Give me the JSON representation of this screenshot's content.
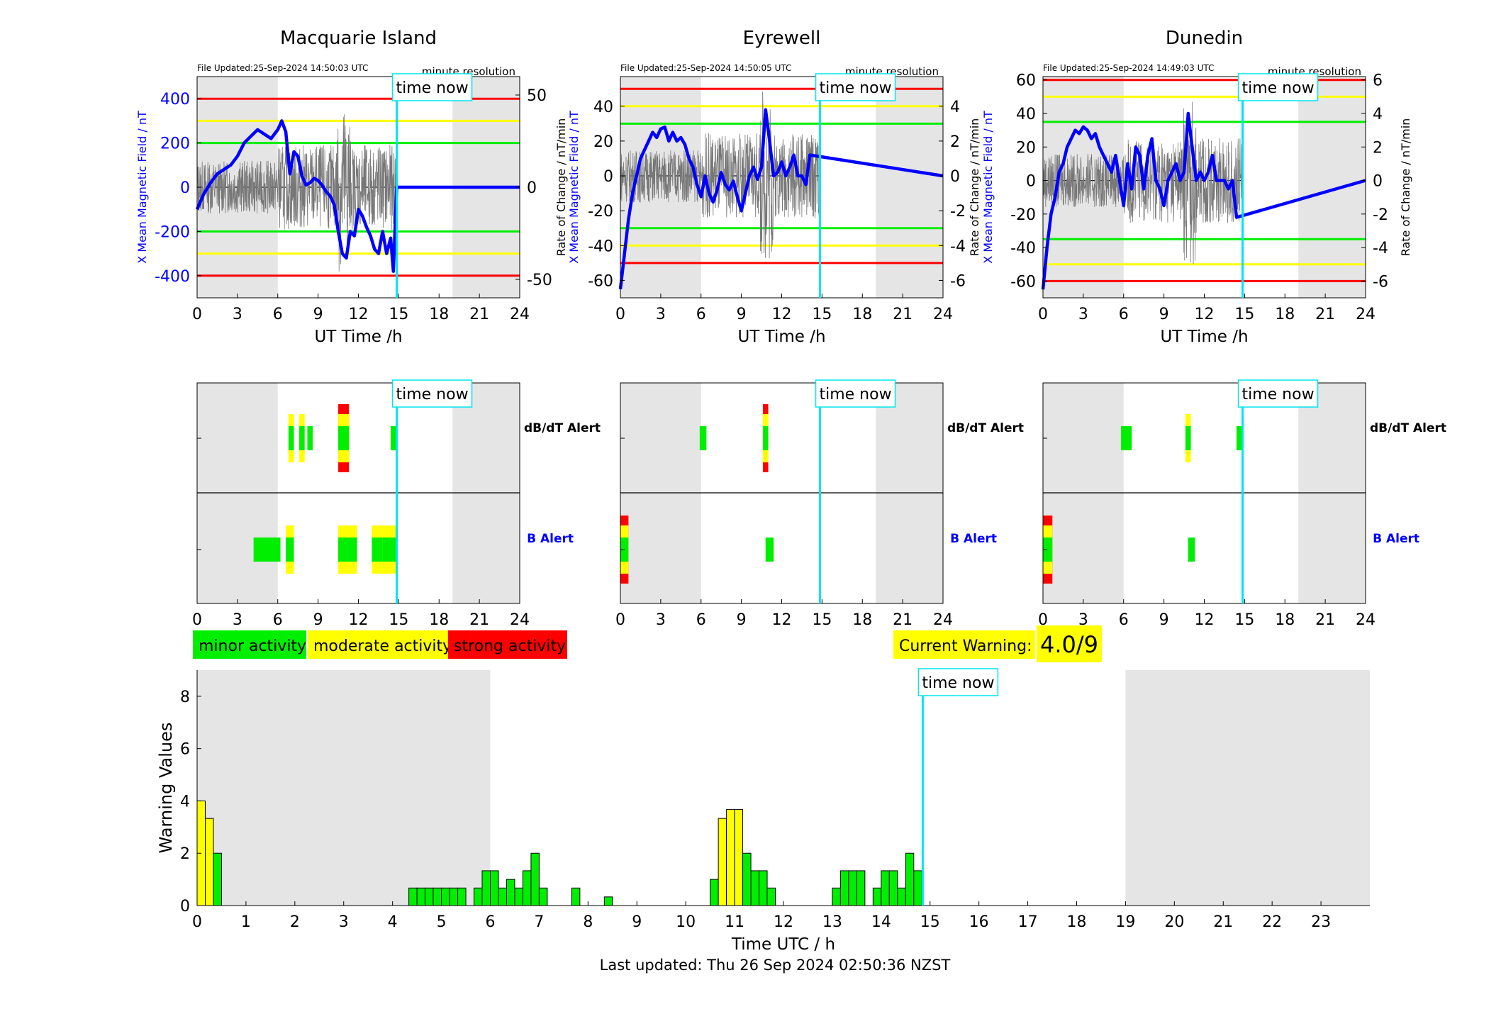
{
  "labels": {
    "time_now": "time now",
    "minute_resolution": "minute resolution",
    "x_axis_label": "UT Time /h",
    "y_left_label": "X Mean Magnetic Field / nT",
    "y_right_label": "Rate of Change / nT/min",
    "dbdt_alert": "dB/dT Alert",
    "b_alert": "B Alert",
    "warning_y_label": "Warning Values",
    "warning_x_label": "Time UTC / h",
    "last_updated": "Last updated: Thu 26 Sep 2024 02:50:36 NZST",
    "current_warning_label": "Current Warning:",
    "current_warning_value": "4.0/9"
  },
  "legend": [
    {
      "label": "minor activity",
      "color": "#00ee00"
    },
    {
      "label": "moderate activity",
      "color": "#ffff00"
    },
    {
      "label": "strong activity",
      "color": "#ff0000"
    }
  ],
  "colors": {
    "minor": "#00ee00",
    "moderate": "#ffff00",
    "strong": "#ff0000",
    "field": "#0000ff",
    "now_line": "#00e5ee",
    "night_shade": "#e5e5e5"
  },
  "time_now_hour": 14.85,
  "chart_data": [
    {
      "type": "line",
      "title": "Macquarie Island",
      "file_updated": "File Updated:25-Sep-2024 14:50:03 UTC",
      "x_ticks": [
        0,
        3,
        6,
        9,
        12,
        15,
        18,
        21,
        24
      ],
      "xlim": [
        0,
        24
      ],
      "ylim_left": [
        -500,
        500
      ],
      "y_ticks_left": [
        400,
        200,
        0,
        -200,
        -400
      ],
      "ylim_right": [
        -60,
        60
      ],
      "y_ticks_right": [
        50,
        0,
        -50
      ],
      "thresholds": {
        "strong": [
          400,
          -400
        ],
        "moderate": [
          300,
          -300
        ],
        "minor": [
          200,
          -200
        ]
      },
      "night_shade": [
        [
          0,
          6
        ],
        [
          19,
          24
        ]
      ],
      "field_series": {
        "x": [
          0,
          0.5,
          1,
          1.5,
          2,
          2.5,
          3,
          3.5,
          4,
          4.5,
          5,
          5.5,
          6,
          6.3,
          6.6,
          6.9,
          7.2,
          7.5,
          7.8,
          8.1,
          8.4,
          8.7,
          9,
          9.3,
          9.6,
          9.9,
          10.2,
          10.5,
          10.8,
          11.1,
          11.4,
          11.7,
          12,
          12.3,
          12.6,
          12.9,
          13.2,
          13.5,
          13.8,
          14.1,
          14.4,
          14.6,
          14.85,
          24
        ],
        "y": [
          -100,
          -30,
          20,
          60,
          80,
          100,
          140,
          200,
          230,
          260,
          240,
          220,
          260,
          300,
          250,
          60,
          160,
          140,
          50,
          10,
          20,
          40,
          30,
          10,
          -20,
          -40,
          -80,
          -200,
          -300,
          -320,
          -200,
          -220,
          -100,
          -130,
          -180,
          -220,
          -280,
          -300,
          -200,
          -300,
          -230,
          -380,
          0,
          0
        ]
      },
      "rate_series_range": [
        -45,
        45
      ],
      "dbdt_alert": [
        {
          "start": 6.8,
          "end": 7.2,
          "level": "moderate"
        },
        {
          "start": 7.6,
          "end": 8.0,
          "level": "moderate"
        },
        {
          "start": 8.2,
          "end": 8.6,
          "level": "minor"
        },
        {
          "start": 10.5,
          "end": 11.3,
          "level": "strong"
        },
        {
          "start": 14.4,
          "end": 14.8,
          "level": "minor"
        }
      ],
      "b_alert": [
        {
          "start": 4.2,
          "end": 6.2,
          "level": "minor"
        },
        {
          "start": 6.6,
          "end": 7.2,
          "level": "moderate"
        },
        {
          "start": 10.5,
          "end": 11.9,
          "level": "moderate"
        },
        {
          "start": 13.0,
          "end": 13.8,
          "level": "moderate"
        },
        {
          "start": 13.8,
          "end": 14.8,
          "level": "moderate"
        }
      ]
    },
    {
      "type": "line",
      "title": "Eyrewell",
      "file_updated": "File Updated:25-Sep-2024 14:50:05 UTC",
      "x_ticks": [
        0,
        3,
        6,
        9,
        12,
        15,
        18,
        21,
        24
      ],
      "xlim": [
        0,
        24
      ],
      "ylim_left": [
        -70,
        57
      ],
      "y_ticks_left": [
        40,
        20,
        0,
        -20,
        -40,
        -60
      ],
      "ylim_right": [
        -7,
        5.7
      ],
      "y_ticks_right": [
        4,
        2,
        0,
        -2,
        -4,
        -6
      ],
      "thresholds": {
        "strong": [
          50,
          -50
        ],
        "moderate": [
          40,
          -40
        ],
        "minor": [
          30,
          -30
        ]
      },
      "night_shade": [
        [
          0,
          6
        ],
        [
          19,
          24
        ]
      ],
      "field_series": {
        "x": [
          0,
          0.3,
          0.6,
          0.9,
          1.2,
          1.5,
          1.8,
          2.1,
          2.4,
          2.7,
          3,
          3.3,
          3.6,
          3.9,
          4.2,
          4.5,
          4.8,
          5.1,
          5.4,
          5.7,
          6,
          6.3,
          6.6,
          6.9,
          7.2,
          7.5,
          7.8,
          8.1,
          8.4,
          8.7,
          9,
          9.3,
          9.6,
          9.9,
          10.2,
          10.5,
          10.8,
          11.1,
          11.4,
          11.7,
          12,
          12.3,
          12.6,
          12.9,
          13.2,
          13.5,
          13.8,
          14.1,
          24
        ],
        "y": [
          -65,
          -45,
          -25,
          -10,
          0,
          10,
          15,
          20,
          25,
          22,
          27,
          28,
          20,
          25,
          20,
          22,
          18,
          10,
          5,
          -5,
          -12,
          0,
          -10,
          -15,
          -8,
          2,
          -5,
          -8,
          -3,
          -12,
          -20,
          -10,
          0,
          5,
          -2,
          5,
          38,
          20,
          0,
          2,
          8,
          0,
          5,
          12,
          0,
          0,
          -5,
          12,
          0
        ]
      },
      "dbdt_alert": [
        {
          "start": 5.9,
          "end": 6.4,
          "level": "minor"
        },
        {
          "start": 10.6,
          "end": 11.0,
          "level": "strong"
        }
      ],
      "b_alert": [
        {
          "start": 0,
          "end": 0.6,
          "level": "strong"
        },
        {
          "start": 10.8,
          "end": 11.4,
          "level": "minor"
        }
      ]
    },
    {
      "type": "line",
      "title": "Dunedin",
      "file_updated": "File Updated:25-Sep-2024 14:49:03 UTC",
      "x_ticks": [
        0,
        3,
        6,
        9,
        12,
        15,
        18,
        21,
        24
      ],
      "xlim": [
        0,
        24
      ],
      "ylim_left": [
        -70,
        62
      ],
      "y_ticks_left": [
        60,
        40,
        20,
        0,
        -20,
        -40,
        -60
      ],
      "ylim_right": [
        -7,
        6.2
      ],
      "y_ticks_right": [
        6,
        4,
        2,
        0,
        -2,
        -4,
        -6
      ],
      "thresholds": {
        "strong": [
          60,
          -60
        ],
        "moderate": [
          50,
          -50
        ],
        "minor": [
          35,
          -35
        ]
      },
      "night_shade": [
        [
          0,
          6
        ],
        [
          19,
          24
        ]
      ],
      "field_series": {
        "x": [
          0,
          0.3,
          0.6,
          0.9,
          1.2,
          1.5,
          1.8,
          2.1,
          2.4,
          2.7,
          3,
          3.3,
          3.6,
          3.9,
          4.2,
          4.5,
          4.8,
          5.1,
          5.4,
          5.7,
          6,
          6.3,
          6.6,
          6.9,
          7.2,
          7.5,
          7.8,
          8.1,
          8.4,
          8.7,
          9,
          9.3,
          9.6,
          9.9,
          10.2,
          10.5,
          10.8,
          11.1,
          11.4,
          11.7,
          12,
          12.3,
          12.6,
          12.9,
          13.2,
          13.5,
          13.8,
          14.1,
          14.4,
          24
        ],
        "y": [
          -65,
          -40,
          -20,
          -10,
          5,
          10,
          20,
          25,
          30,
          28,
          32,
          30,
          25,
          28,
          20,
          15,
          10,
          5,
          15,
          0,
          -15,
          10,
          -5,
          20,
          15,
          -5,
          15,
          25,
          0,
          -5,
          -15,
          0,
          5,
          10,
          0,
          5,
          40,
          20,
          0,
          5,
          0,
          5,
          15,
          0,
          0,
          0,
          -5,
          0,
          -22,
          0
        ]
      },
      "dbdt_alert": [
        {
          "start": 5.8,
          "end": 6.6,
          "level": "minor"
        },
        {
          "start": 10.6,
          "end": 11.0,
          "level": "moderate"
        },
        {
          "start": 14.4,
          "end": 14.8,
          "level": "minor"
        }
      ],
      "b_alert": [
        {
          "start": 0,
          "end": 0.7,
          "level": "strong"
        },
        {
          "start": 10.8,
          "end": 11.3,
          "level": "minor"
        }
      ]
    },
    {
      "type": "bar",
      "title": "",
      "xlabel": "Time UTC / h",
      "ylabel": "Warning Values",
      "xlim": [
        0,
        24
      ],
      "ylim": [
        0,
        9
      ],
      "x_ticks": [
        0,
        1,
        2,
        3,
        4,
        5,
        6,
        7,
        8,
        9,
        10,
        11,
        12,
        13,
        14,
        15,
        16,
        17,
        18,
        19,
        20,
        21,
        22,
        23
      ],
      "y_ticks": [
        0,
        2,
        4,
        6,
        8
      ],
      "night_shade": [
        [
          0,
          6
        ],
        [
          19,
          24
        ]
      ],
      "bar_width_h": 0.1667,
      "bars": [
        {
          "t": 0.0,
          "v": 4.0,
          "level": "moderate"
        },
        {
          "t": 0.1667,
          "v": 3.33,
          "level": "moderate"
        },
        {
          "t": 0.3333,
          "v": 2.0,
          "level": "minor"
        },
        {
          "t": 4.3333,
          "v": 0.67,
          "level": "minor"
        },
        {
          "t": 4.5,
          "v": 0.67,
          "level": "minor"
        },
        {
          "t": 4.6667,
          "v": 0.67,
          "level": "minor"
        },
        {
          "t": 4.8333,
          "v": 0.67,
          "level": "minor"
        },
        {
          "t": 5.0,
          "v": 0.67,
          "level": "minor"
        },
        {
          "t": 5.1667,
          "v": 0.67,
          "level": "minor"
        },
        {
          "t": 5.3333,
          "v": 0.67,
          "level": "minor"
        },
        {
          "t": 5.6667,
          "v": 0.67,
          "level": "minor"
        },
        {
          "t": 5.8333,
          "v": 1.33,
          "level": "minor"
        },
        {
          "t": 6.0,
          "v": 1.33,
          "level": "minor"
        },
        {
          "t": 6.1667,
          "v": 0.67,
          "level": "minor"
        },
        {
          "t": 6.3333,
          "v": 1.0,
          "level": "minor"
        },
        {
          "t": 6.5,
          "v": 0.67,
          "level": "minor"
        },
        {
          "t": 6.6667,
          "v": 1.33,
          "level": "minor"
        },
        {
          "t": 6.8333,
          "v": 2.0,
          "level": "minor"
        },
        {
          "t": 7.0,
          "v": 0.67,
          "level": "minor"
        },
        {
          "t": 7.6667,
          "v": 0.67,
          "level": "minor"
        },
        {
          "t": 8.3333,
          "v": 0.33,
          "level": "minor"
        },
        {
          "t": 10.5,
          "v": 1.0,
          "level": "minor"
        },
        {
          "t": 10.6667,
          "v": 3.33,
          "level": "moderate"
        },
        {
          "t": 10.8333,
          "v": 3.67,
          "level": "moderate"
        },
        {
          "t": 11.0,
          "v": 3.67,
          "level": "moderate"
        },
        {
          "t": 11.1667,
          "v": 2.0,
          "level": "minor"
        },
        {
          "t": 11.3333,
          "v": 1.33,
          "level": "minor"
        },
        {
          "t": 11.5,
          "v": 1.33,
          "level": "minor"
        },
        {
          "t": 11.6667,
          "v": 0.67,
          "level": "minor"
        },
        {
          "t": 13.0,
          "v": 0.67,
          "level": "minor"
        },
        {
          "t": 13.1667,
          "v": 1.33,
          "level": "minor"
        },
        {
          "t": 13.3333,
          "v": 1.33,
          "level": "minor"
        },
        {
          "t": 13.5,
          "v": 1.33,
          "level": "minor"
        },
        {
          "t": 13.8333,
          "v": 0.67,
          "level": "minor"
        },
        {
          "t": 14.0,
          "v": 1.33,
          "level": "minor"
        },
        {
          "t": 14.1667,
          "v": 1.33,
          "level": "minor"
        },
        {
          "t": 14.3333,
          "v": 0.67,
          "level": "minor"
        },
        {
          "t": 14.5,
          "v": 2.0,
          "level": "minor"
        },
        {
          "t": 14.6667,
          "v": 1.33,
          "level": "minor"
        }
      ]
    }
  ]
}
